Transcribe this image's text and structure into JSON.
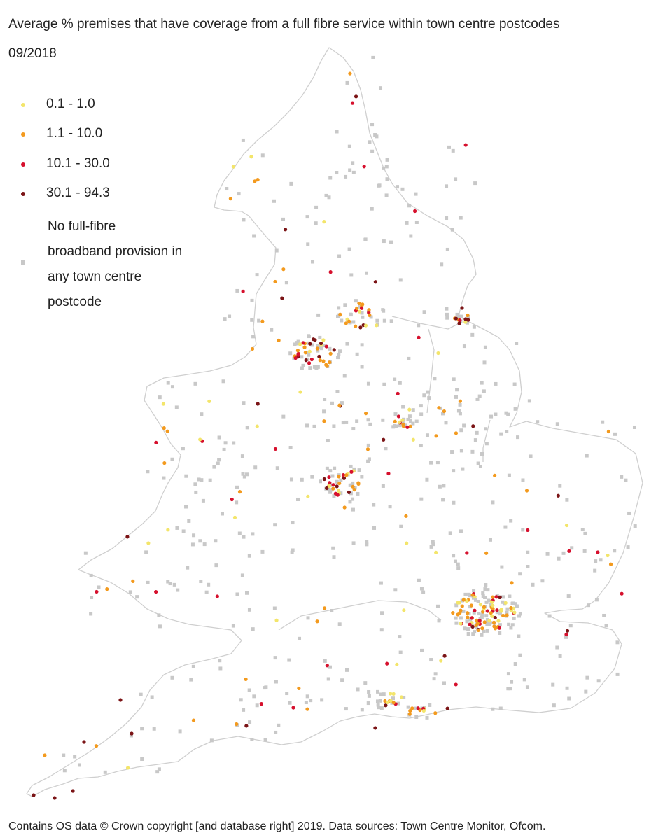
{
  "title": "Average % premises that have coverage from a full fibre service within town centre postcodes",
  "subtitle": "09/2018",
  "legend": {
    "items": [
      {
        "label": "0.1 - 1.0",
        "color": "#f3e56b"
      },
      {
        "label": "1.1 - 10.0",
        "color": "#f39a1e"
      },
      {
        "label": "10.1 - 30.0",
        "color": "#d6102d"
      },
      {
        "label": "30.1 - 94.3",
        "color": "#7b1416"
      }
    ],
    "no_provision": {
      "line1": "No full-fibre",
      "line2": "broadband provision in",
      "line3": "any town centre",
      "line4": "postcode",
      "color": "#c8c8c8"
    }
  },
  "footer": "Contains OS data © Crown copyright [and database right] 2019. Data sources: Town Centre Monitor, Ofcom.",
  "colors": {
    "coast": "#cfcfcf",
    "grey_square": "#c8c8c8"
  }
}
